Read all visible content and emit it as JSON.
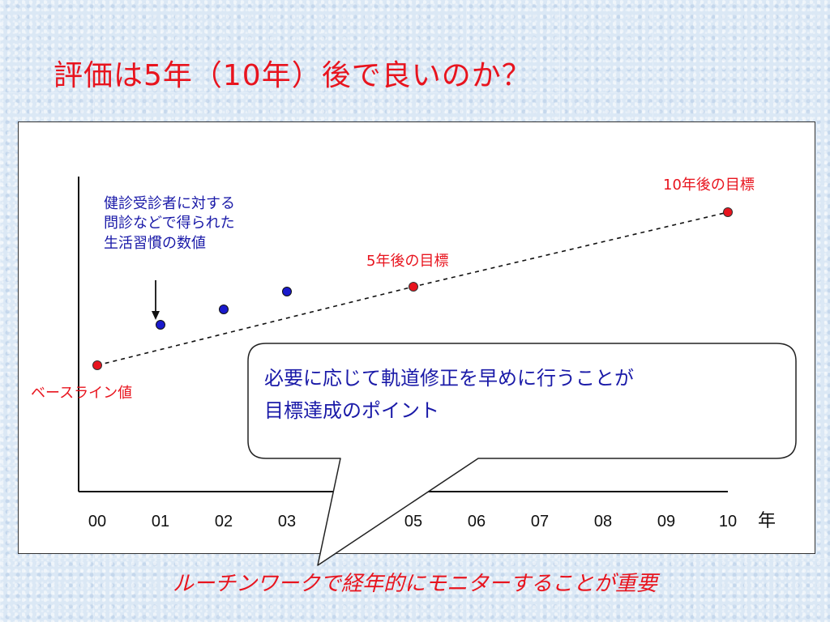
{
  "title": "評価は5年（10年）後で良いのか？",
  "colors": {
    "title": "#e8141e",
    "target_marker": "#e8141e",
    "measured_marker": "#1a1acc",
    "callout_text": "#1a1aa8"
  },
  "chart_data": {
    "type": "scatter",
    "x_ticks": [
      "00",
      "01",
      "02",
      "03",
      "05",
      "06",
      "07",
      "08",
      "09",
      "10"
    ],
    "x_unit": "年",
    "measured": {
      "x": [
        "01",
        "02",
        "03"
      ],
      "label": "健診受診者に対する\n問診などで得られた\n生活習慣の数値"
    },
    "targets": [
      {
        "x": "00",
        "label": "ベースライン値"
      },
      {
        "x": "05",
        "label": "5年後の目標"
      },
      {
        "x": "10",
        "label": "10年後の目標"
      }
    ],
    "grid": false
  },
  "callout": {
    "line1": "必要に応じて軌道修正を早めに行うことが",
    "line2": "目標達成のポイント"
  },
  "footer": "ルーチンワークで経年的にモニターすることが重要"
}
